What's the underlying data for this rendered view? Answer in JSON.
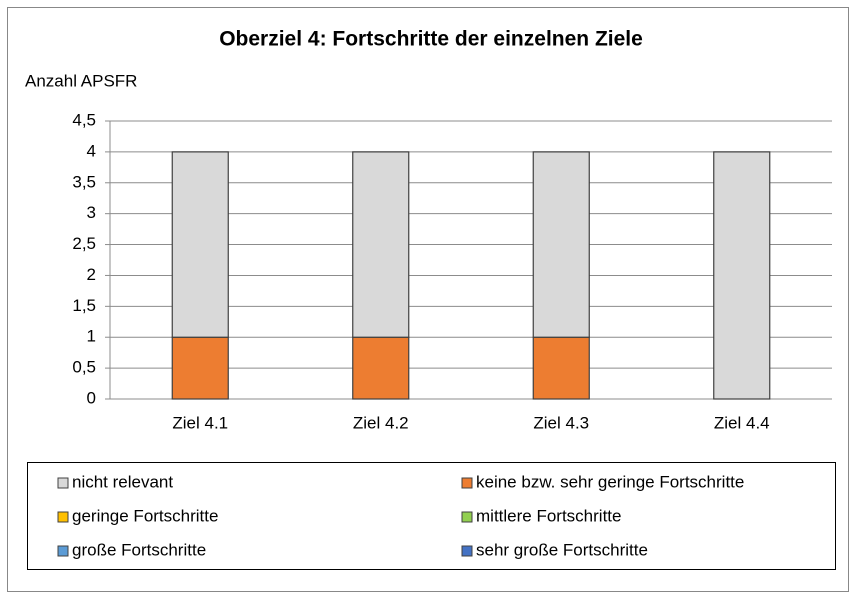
{
  "chart_data": {
    "type": "stacked_bar",
    "title": "Oberziel 4: Fortschritte der einzelnen Ziele",
    "y_label": "Anzahl APSFR",
    "categories": [
      "Ziel 4.1",
      "Ziel 4.2",
      "Ziel 4.3",
      "Ziel 4.4"
    ],
    "series": [
      {
        "name": "nicht relevant",
        "color": "#d9d9d9",
        "values": [
          3,
          3,
          3,
          4
        ]
      },
      {
        "name": "keine bzw. sehr geringe Fortschritte",
        "color": "#ed7d31",
        "values": [
          1,
          1,
          1,
          0
        ]
      },
      {
        "name": "geringe Fortschritte",
        "color": "#ffc000",
        "values": [
          0,
          0,
          0,
          0
        ]
      },
      {
        "name": "mittlere Fortschritte",
        "color": "#92d050",
        "values": [
          0,
          0,
          0,
          0
        ]
      },
      {
        "name": "große Fortschritte",
        "color": "#5b9bd5",
        "values": [
          0,
          0,
          0,
          0
        ]
      },
      {
        "name": "sehr große Fortschritte",
        "color": "#4472c4",
        "values": [
          0,
          0,
          0,
          0
        ]
      }
    ],
    "ylim": [
      0,
      4.5
    ],
    "yticks": [
      0,
      {
        "value": 0.5,
        "label": "0,5"
      },
      1,
      {
        "value": 1.5,
        "label": "1,5"
      },
      2,
      {
        "value": 2.5,
        "label": "2,5"
      },
      3,
      {
        "value": 3.5,
        "label": "3,5"
      },
      4,
      {
        "value": 4.5,
        "label": "4,5"
      }
    ],
    "grid": true,
    "legend": "bottom"
  }
}
